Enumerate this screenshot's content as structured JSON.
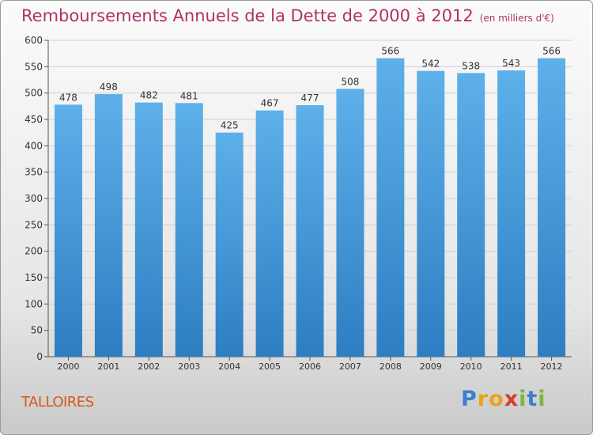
{
  "title": "Remboursements Annuels de la Dette de 2000 à 2012",
  "subtitle": "(en milliers d'€)",
  "commune": "TALLOIRES",
  "brand": {
    "name": "Proxiti",
    "letters": [
      {
        "ch": "P",
        "color": "#3d7fd0"
      },
      {
        "ch": "r",
        "color": "#e8a31b"
      },
      {
        "ch": "o",
        "color": "#e8a31b"
      },
      {
        "ch": "x",
        "color": "#d93a2b"
      },
      {
        "ch": "i",
        "color": "#7ab63e"
      },
      {
        "ch": "t",
        "color": "#3d7fd0"
      },
      {
        "ch": "i",
        "color": "#7ab63e"
      }
    ]
  },
  "colors": {
    "title": "#b0306b",
    "bar_top": "#5eb0ea",
    "bar_bottom": "#2d7ec2",
    "grid": "#cfcfcf",
    "commune": "#d45a1c"
  },
  "chart_data": {
    "type": "bar",
    "title": "Remboursements Annuels de la Dette de 2000 à 2012",
    "subtitle": "(en milliers d'€)",
    "categories": [
      "2000",
      "2001",
      "2002",
      "2003",
      "2004",
      "2005",
      "2006",
      "2007",
      "2008",
      "2009",
      "2010",
      "2011",
      "2012"
    ],
    "values": [
      478,
      498,
      482,
      481,
      425,
      467,
      477,
      508,
      566,
      542,
      538,
      543,
      566
    ],
    "ylim": [
      0,
      600
    ],
    "yticks": [
      0,
      50,
      100,
      150,
      200,
      250,
      300,
      350,
      400,
      450,
      500,
      550,
      600
    ],
    "grid": true,
    "data_labels": true,
    "legend": "none"
  }
}
